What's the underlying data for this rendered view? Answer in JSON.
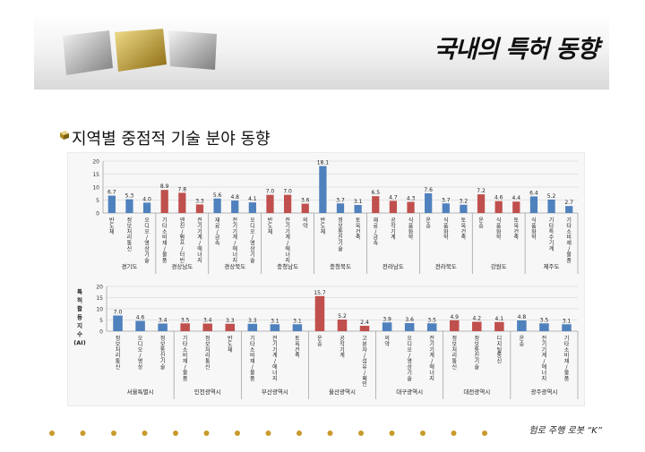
{
  "slide": {
    "title": "국내의 특허 동향",
    "subtitle": "지역별 중점적 기술 분야 동향",
    "footer": "험로 주행 로봇 “K”"
  },
  "colors": {
    "blue": "#4f81bd",
    "red": "#c0504d"
  },
  "chart_data": [
    {
      "type": "bar",
      "ylim": [
        0,
        20
      ],
      "yticks": [
        0,
        5,
        10,
        15,
        20
      ],
      "ylabel": "",
      "bars": [
        {
          "label": "반도체",
          "value": 6.7,
          "value_label": "6.7",
          "color": "blue"
        },
        {
          "label": "정보처리통신",
          "value": 5.3,
          "value_label": "5.3",
          "color": "blue"
        },
        {
          "label": "오디오/영상기술",
          "value": 4.0,
          "value_label": "4.0",
          "color": "blue"
        },
        {
          "label": "기타소비재/물품",
          "value": 8.9,
          "value_label": "8.9",
          "color": "red"
        },
        {
          "label": "엔진/펌프/터빈",
          "value": 7.8,
          "value_label": "7.8",
          "color": "red"
        },
        {
          "label": "전기기계/에너지",
          "value": 3.3,
          "value_label": "3.3",
          "color": "red"
        },
        {
          "label": "재료/금속",
          "value": 5.6,
          "value_label": "5.6",
          "color": "blue"
        },
        {
          "label": "전기기계/에너지",
          "value": 4.8,
          "value_label": "4.8",
          "color": "blue"
        },
        {
          "label": "오디오/영상기술",
          "value": 4.1,
          "value_label": "4.1",
          "color": "blue"
        },
        {
          "label": "반도체",
          "value": 7.0,
          "value_label": "7.0",
          "color": "red"
        },
        {
          "label": "전기기계/에너지",
          "value": 7.0,
          "value_label": "7.0",
          "color": "red"
        },
        {
          "label": "의약",
          "value": 3.6,
          "value_label": "3.6",
          "color": "red"
        },
        {
          "label": "반도체",
          "value": 18.1,
          "value_label": "18.1",
          "color": "blue"
        },
        {
          "label": "정보통신기술",
          "value": 3.7,
          "value_label": "3.7",
          "color": "blue"
        },
        {
          "label": "토목건축",
          "value": 3.1,
          "value_label": "3.1",
          "color": "blue"
        },
        {
          "label": "재료/금속",
          "value": 6.5,
          "value_label": "6.5",
          "color": "red"
        },
        {
          "label": "공작기계",
          "value": 4.7,
          "value_label": "4.7",
          "color": "red"
        },
        {
          "label": "식품화학",
          "value": 4.3,
          "value_label": "4.3",
          "color": "red"
        },
        {
          "label": "운송",
          "value": 7.6,
          "value_label": "7.6",
          "color": "blue"
        },
        {
          "label": "식품화학",
          "value": 3.7,
          "value_label": "3.7",
          "color": "blue"
        },
        {
          "label": "토목건축",
          "value": 3.2,
          "value_label": "3.2",
          "color": "blue"
        },
        {
          "label": "운송",
          "value": 7.2,
          "value_label": "7.2",
          "color": "red"
        },
        {
          "label": "식품화학",
          "value": 4.6,
          "value_label": "4.6",
          "color": "red"
        },
        {
          "label": "토목건축",
          "value": 4.4,
          "value_label": "4.4",
          "color": "red"
        },
        {
          "label": "식품화학",
          "value": 6.4,
          "value_label": "6.4",
          "color": "blue"
        },
        {
          "label": "기타특수기계",
          "value": 5.2,
          "value_label": "5.2",
          "color": "blue"
        },
        {
          "label": "기타소비재/물품",
          "value": 2.7,
          "value_label": "2.7",
          "color": "blue"
        }
      ],
      "groups": [
        {
          "name": "경기도",
          "start": 0,
          "end": 2
        },
        {
          "name": "경상남도",
          "start": 3,
          "end": 5
        },
        {
          "name": "경상북도",
          "start": 6,
          "end": 8
        },
        {
          "name": "충청남도",
          "start": 9,
          "end": 11
        },
        {
          "name": "충청북도",
          "start": 12,
          "end": 14
        },
        {
          "name": "전라남도",
          "start": 15,
          "end": 17
        },
        {
          "name": "전라북도",
          "start": 18,
          "end": 20
        },
        {
          "name": "강원도",
          "start": 21,
          "end": 23
        },
        {
          "name": "제주도",
          "start": 24,
          "end": 26
        }
      ]
    },
    {
      "type": "bar",
      "ylim": [
        0,
        20
      ],
      "yticks": [
        0,
        5,
        10,
        15,
        20
      ],
      "ylabel": "특허활동지수(AI)",
      "ylabel_chars": [
        "특",
        "허",
        "활",
        "동",
        "지",
        "수",
        "(AI)"
      ],
      "bars": [
        {
          "label": "정보처리통신",
          "value": 7.0,
          "value_label": "7.0",
          "color": "blue"
        },
        {
          "label": "오디오/영상",
          "value": 4.6,
          "value_label": "4.6",
          "color": "blue"
        },
        {
          "label": "정보통신기술",
          "value": 3.4,
          "value_label": "3.4",
          "color": "blue"
        },
        {
          "label": "기타소비재/물품",
          "value": 3.5,
          "value_label": "3.5",
          "color": "red"
        },
        {
          "label": "정보처리통신",
          "value": 3.4,
          "value_label": "3.4",
          "color": "red"
        },
        {
          "label": "반도체",
          "value": 3.3,
          "value_label": "3.3",
          "color": "red"
        },
        {
          "label": "기타소비재/물품",
          "value": 3.3,
          "value_label": "3.3",
          "color": "blue"
        },
        {
          "label": "전기기계/에너지",
          "value": 3.1,
          "value_label": "3.1",
          "color": "blue"
        },
        {
          "label": "토목건축",
          "value": 3.1,
          "value_label": "3.1",
          "color": "blue"
        },
        {
          "label": "운송",
          "value": 15.7,
          "value_label": "15.7",
          "color": "red"
        },
        {
          "label": "공작기계",
          "value": 5.2,
          "value_label": "5.2",
          "color": "red"
        },
        {
          "label": "고분자/섬유/페인트",
          "value": 2.4,
          "value_label": "2.4",
          "color": "red"
        },
        {
          "label": "의약",
          "value": 3.9,
          "value_label": "3.9",
          "color": "blue"
        },
        {
          "label": "오디오/영상기술",
          "value": 3.6,
          "value_label": "3.6",
          "color": "blue"
        },
        {
          "label": "전기기계/에너지",
          "value": 3.5,
          "value_label": "3.5",
          "color": "blue"
        },
        {
          "label": "정보처리통신",
          "value": 4.9,
          "value_label": "4.9",
          "color": "red"
        },
        {
          "label": "정보통신기술",
          "value": 4.2,
          "value_label": "4.2",
          "color": "red"
        },
        {
          "label": "디지털통신",
          "value": 4.1,
          "value_label": "4.1",
          "color": "red"
        },
        {
          "label": "운송",
          "value": 4.8,
          "value_label": "4.8",
          "color": "blue"
        },
        {
          "label": "전기기계/에너지",
          "value": 3.5,
          "value_label": "3.5",
          "color": "blue"
        },
        {
          "label": "기타소비재/물품",
          "value": 3.1,
          "value_label": "3.1",
          "color": "blue"
        }
      ],
      "groups": [
        {
          "name": "서울특별시",
          "start": 0,
          "end": 2
        },
        {
          "name": "인천광역시",
          "start": 3,
          "end": 5
        },
        {
          "name": "부산광역시",
          "start": 6,
          "end": 8
        },
        {
          "name": "울산광역시",
          "start": 9,
          "end": 11
        },
        {
          "name": "대구광역시",
          "start": 12,
          "end": 14
        },
        {
          "name": "대전광역시",
          "start": 15,
          "end": 17
        },
        {
          "name": "광주광역시",
          "start": 18,
          "end": 20
        }
      ]
    }
  ]
}
